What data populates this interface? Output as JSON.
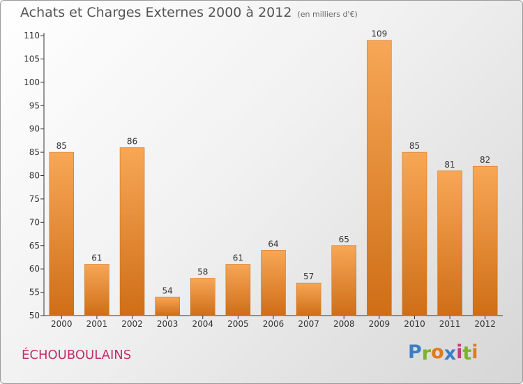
{
  "title": "Achats et Charges Externes 2000 à 2012",
  "unit_note": "(en milliers d'€)",
  "place_name": "ÉCHOUBOULAINS",
  "logo": {
    "letters": [
      "P",
      "r",
      "o",
      "x",
      "i",
      "t",
      "i"
    ],
    "colors": [
      "#3a7fc8",
      "#7cb32a",
      "#e07a1c",
      "#3a7fc8",
      "#c63a82",
      "#7cb32a",
      "#e07a1c"
    ]
  },
  "colors": {
    "bar_top": "#f7a756",
    "bar_bottom": "#cf6e17",
    "label": "#333333"
  },
  "chart_data": {
    "type": "bar",
    "title": "Achats et Charges Externes 2000 à 2012",
    "categories": [
      "2000",
      "2001",
      "2002",
      "2003",
      "2004",
      "2005",
      "2006",
      "2007",
      "2008",
      "2009",
      "2010",
      "2011",
      "2012"
    ],
    "values": [
      85,
      61,
      86,
      54,
      58,
      61,
      64,
      57,
      65,
      109,
      85,
      81,
      82
    ],
    "ylim": [
      50,
      110
    ],
    "yticks": [
      50,
      55,
      60,
      65,
      70,
      75,
      80,
      85,
      90,
      95,
      100,
      105,
      110
    ],
    "grid": false,
    "legend": "none"
  }
}
